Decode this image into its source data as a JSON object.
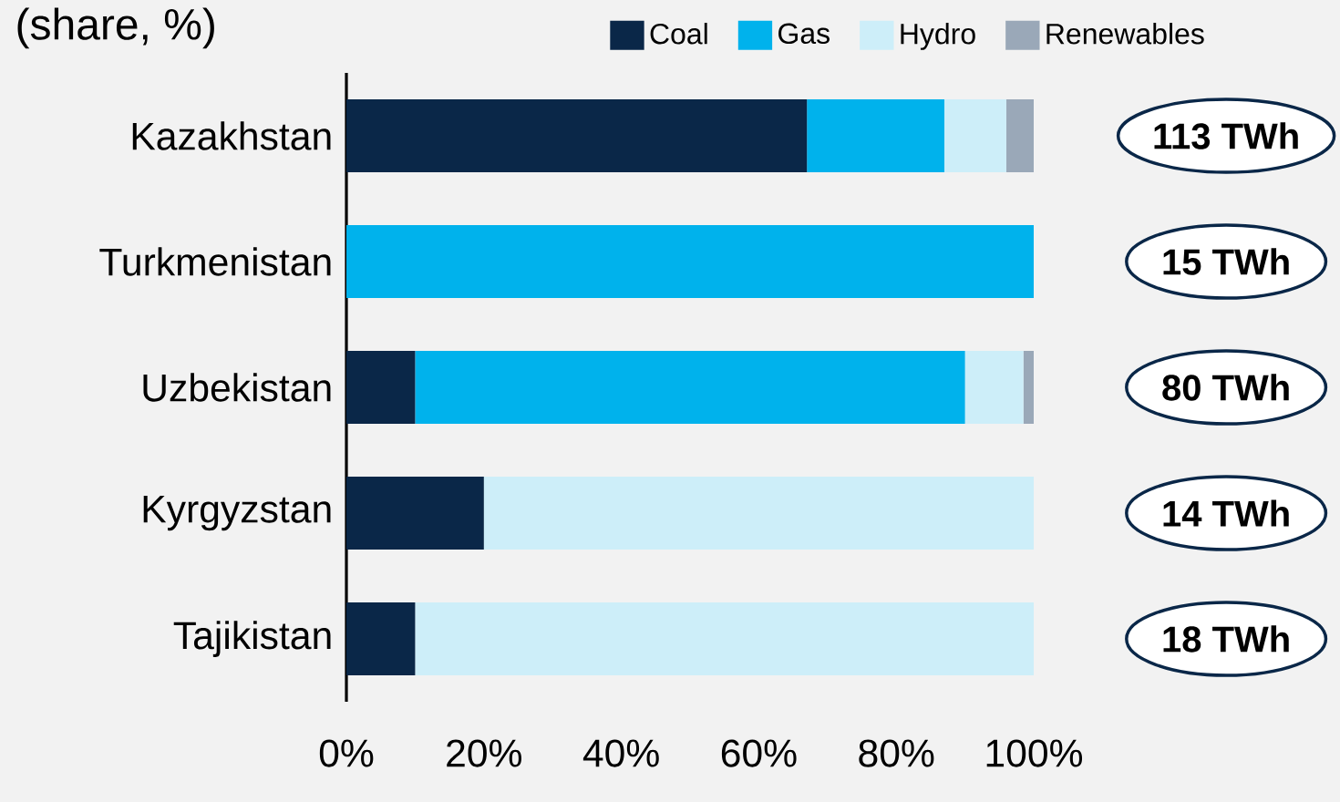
{
  "chart_data": {
    "type": "bar",
    "orientation": "horizontal",
    "stacked": true,
    "title": "(share, %)",
    "categories": [
      "Kazakhstan",
      "Turkmenistan",
      "Uzbekistan",
      "Kyrgyzstan",
      "Tajikistan"
    ],
    "series": [
      {
        "name": "Coal",
        "color": "#0a2748",
        "values": [
          67,
          0,
          10,
          20,
          10
        ]
      },
      {
        "name": "Gas",
        "color": "#00b2ec",
        "values": [
          20,
          100,
          80,
          0,
          0
        ]
      },
      {
        "name": "Hydro",
        "color": "#cdeef9",
        "values": [
          9,
          0,
          8.5,
          80,
          90
        ]
      },
      {
        "name": "Renewables",
        "color": "#9aa8b8",
        "values": [
          4,
          0,
          1.5,
          0,
          0
        ]
      }
    ],
    "xlim": [
      0,
      100
    ],
    "xticks": [
      {
        "value": 0,
        "label": "0%"
      },
      {
        "value": 20,
        "label": "20%"
      },
      {
        "value": 40,
        "label": "40%"
      },
      {
        "value": 60,
        "label": "60%"
      },
      {
        "value": 80,
        "label": "80%"
      },
      {
        "value": 100,
        "label": "100%"
      }
    ],
    "legend": "top right",
    "annotations": [
      "113 TWh",
      "15 TWh",
      "80 TWh",
      "14 TWh",
      "18 TWh"
    ]
  }
}
